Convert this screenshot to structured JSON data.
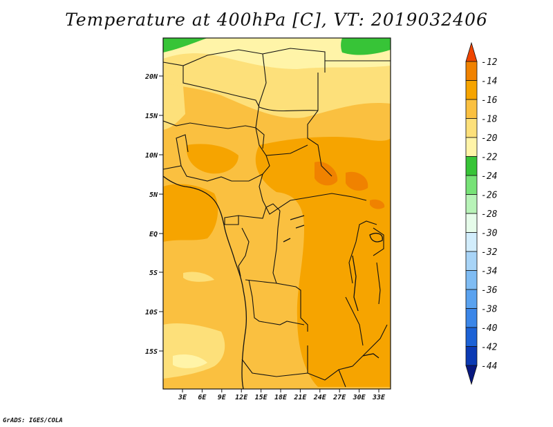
{
  "title": "Temperature at 400hPa [C], VT: 2019032406",
  "credit": "GrADS: IGES/COLA",
  "map": {
    "lat_labels": [
      "20N",
      "15N",
      "10N",
      "5N",
      "EQ",
      "5S",
      "10S",
      "15S"
    ],
    "lon_labels": [
      "3E",
      "6E",
      "9E",
      "12E",
      "15E",
      "18E",
      "21E",
      "24E",
      "27E",
      "30E",
      "33E"
    ]
  },
  "colorbar": {
    "labels": [
      "-12",
      "-14",
      "-16",
      "-18",
      "-20",
      "-22",
      "-24",
      "-26",
      "-28",
      "-30",
      "-32",
      "-34",
      "-36",
      "-38",
      "-40",
      "-42",
      "-44"
    ],
    "colors": [
      "#ef4500",
      "#f08200",
      "#f6a400",
      "#fac040",
      "#fde07a",
      "#fff4a8",
      "#37c437",
      "#77e277",
      "#b8f3b8",
      "#e6fcea",
      "#d2edfc",
      "#a8d4f7",
      "#7fbcf3",
      "#5aa2ef",
      "#3b86e8",
      "#1c62d6",
      "#0b3ab4",
      "#081880"
    ]
  }
}
